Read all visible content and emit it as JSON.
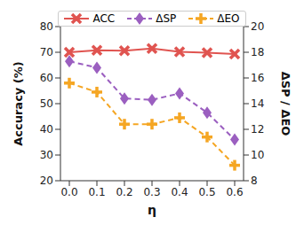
{
  "chart_data": {
    "type": "line",
    "x_label": "η",
    "y_label": "Accuracy (%)",
    "y2_label": "ΔSP / ΔEO",
    "categories": [
      "0.0",
      "0.1",
      "0.2",
      "0.3",
      "0.4",
      "0.5",
      "0.6"
    ],
    "series": [
      {
        "name": "ACC",
        "color": "#e05450",
        "marker": "x",
        "line_style": "solid",
        "values": [
          70.0,
          70.8,
          70.6,
          71.5,
          70.2,
          69.8,
          69.3
        ]
      },
      {
        "name": "ΔSP",
        "color": "#9b5fc0",
        "marker": "diamond",
        "line_style": "dashed",
        "axis": "y2",
        "values": [
          17.3,
          16.8,
          14.4,
          14.3,
          14.8,
          13.3,
          11.2
        ]
      },
      {
        "name": "ΔEO",
        "color": "#f5a623",
        "marker": "plus",
        "line_style": "dashed",
        "axis": "y2",
        "values": [
          15.6,
          14.9,
          12.4,
          12.4,
          12.9,
          11.4,
          9.2
        ]
      }
    ],
    "ylim": [
      20,
      80
    ],
    "yticks": [
      20,
      30,
      40,
      50,
      60,
      70,
      80
    ],
    "y2lim": [
      8,
      20
    ],
    "y2ticks": [
      8,
      10,
      12,
      14,
      16,
      18,
      20
    ],
    "grid": false,
    "legend": "top"
  }
}
